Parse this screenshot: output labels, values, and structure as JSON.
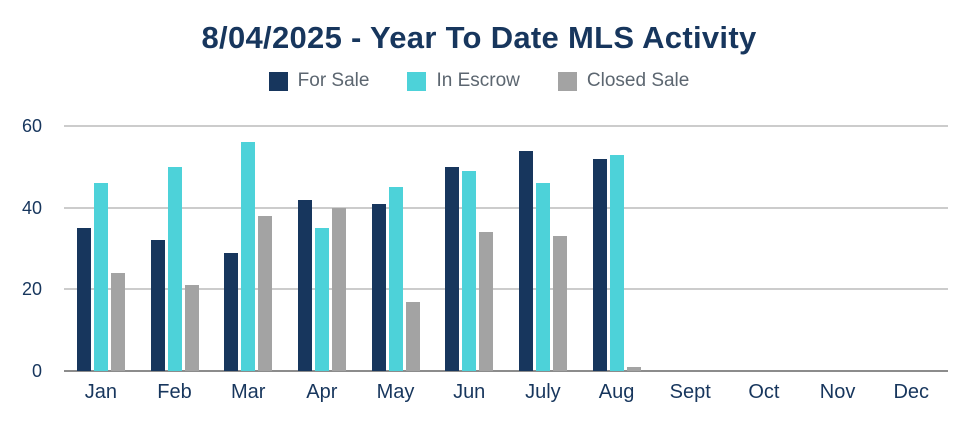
{
  "title": "8/04/2025 - Year To Date MLS Activity",
  "chart_data": {
    "type": "bar",
    "title": "8/04/2025 - Year To Date MLS Activity",
    "categories": [
      "Jan",
      "Feb",
      "Mar",
      "Apr",
      "May",
      "Jun",
      "July",
      "Aug",
      "Sept",
      "Oct",
      "Nov",
      "Dec"
    ],
    "series": [
      {
        "name": "For Sale",
        "color": "#17365d",
        "values": [
          35,
          32,
          29,
          42,
          41,
          50,
          54,
          52,
          0,
          0,
          0,
          0
        ]
      },
      {
        "name": "In Escrow",
        "color": "#4dd2d9",
        "values": [
          46,
          50,
          56,
          35,
          45,
          49,
          46,
          53,
          0,
          0,
          0,
          0
        ]
      },
      {
        "name": "Closed Sale",
        "color": "#a3a3a3",
        "values": [
          24,
          21,
          38,
          40,
          17,
          34,
          33,
          1,
          0,
          0,
          0,
          0
        ]
      }
    ],
    "xlabel": "",
    "ylabel": "",
    "ylim": [
      0,
      60
    ],
    "yticks": [
      0,
      20,
      40,
      60
    ],
    "grid": true,
    "legend_position": "top"
  },
  "colors": {
    "background": "#ffffff",
    "title_text": "#17365d",
    "axis_label_text": "#17365d",
    "legend_label_text": "#5c6670",
    "gridline": "#cccccc",
    "zero_line": "#8c8c8c"
  }
}
